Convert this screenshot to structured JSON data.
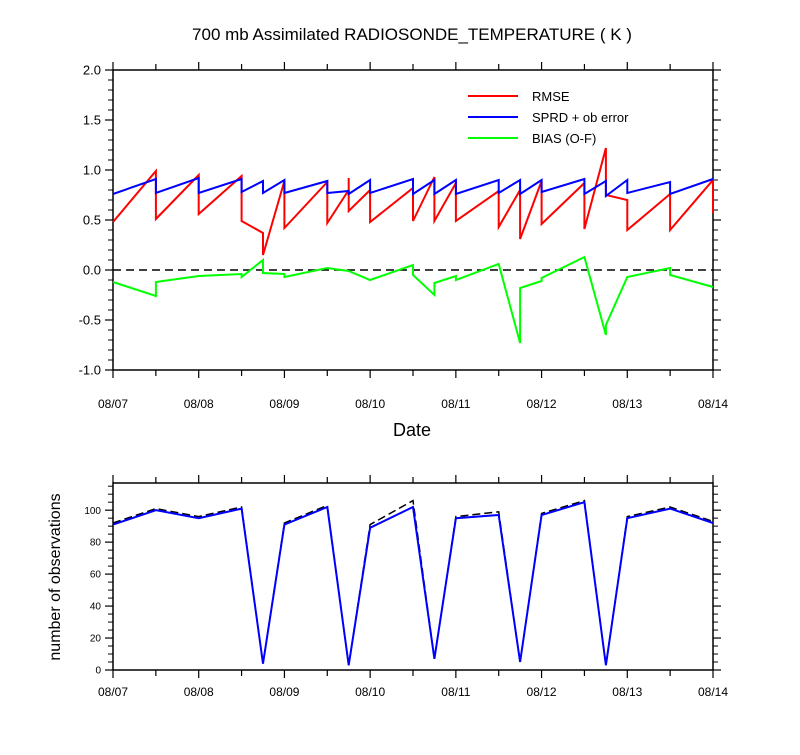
{
  "title": "700 mb Assimilated RADIOSONDE_TEMPERATURE ( K )",
  "colors": {
    "rmse": "#ff0000",
    "sprd": "#0000ff",
    "bias": "#00ff00",
    "zero_line": "#000000",
    "obs_total": "#000000",
    "obs_used": "#0000ff"
  },
  "chart_data": [
    {
      "type": "line",
      "xlabel": "Date",
      "ylabel": "",
      "xlim": [
        "2008-08-07 00:00",
        "2008-08-14 00:00"
      ],
      "ylim": [
        -1.0,
        2.0
      ],
      "x_tick_labels": [
        "08/07",
        "08/08",
        "08/09",
        "08/10",
        "08/11",
        "08/12",
        "08/13",
        "08/14"
      ],
      "y_tick_labels": [
        "2.0",
        "1.5",
        "1.0",
        "0.5",
        "0.0",
        "-0.5",
        "-1.0"
      ],
      "y_tick_values": [
        2.0,
        1.5,
        1.0,
        0.5,
        0.0,
        -0.5,
        -1.0
      ],
      "reference_line": {
        "y": 0.0,
        "style": "dashed"
      },
      "legend_position": "top-right",
      "series": [
        {
          "name": "RMSE",
          "color": "#ff0000",
          "points": [
            [
              "2008-08-07 00:00",
              0.48
            ],
            [
              "2008-08-07 12:00",
              0.99
            ],
            [
              "2008-08-07 12:00",
              0.51
            ],
            [
              "2008-08-08 00:00",
              0.95
            ],
            [
              "2008-08-08 00:00",
              0.56
            ],
            [
              "2008-08-08 12:00",
              0.94
            ],
            [
              "2008-08-08 12:00",
              0.49
            ],
            [
              "2008-08-08 18:00",
              0.37
            ],
            [
              "2008-08-08 18:00",
              0.15
            ],
            [
              "2008-08-09 00:00",
              0.89
            ],
            [
              "2008-08-09 00:00",
              0.42
            ],
            [
              "2008-08-09 12:00",
              0.88
            ],
            [
              "2008-08-09 12:00",
              0.47
            ],
            [
              "2008-08-09 18:00",
              0.8
            ],
            [
              "2008-08-09 18:00",
              0.92
            ],
            [
              "2008-08-09 18:00",
              0.59
            ],
            [
              "2008-08-10 00:00",
              0.8
            ],
            [
              "2008-08-10 00:00",
              0.48
            ],
            [
              "2008-08-10 12:00",
              0.82
            ],
            [
              "2008-08-10 12:00",
              0.49
            ],
            [
              "2008-08-10 18:00",
              0.93
            ],
            [
              "2008-08-10 18:00",
              0.49
            ],
            [
              "2008-08-11 00:00",
              0.87
            ],
            [
              "2008-08-11 00:00",
              0.49
            ],
            [
              "2008-08-11 12:00",
              0.79
            ],
            [
              "2008-08-11 12:00",
              0.43
            ],
            [
              "2008-08-11 18:00",
              0.8
            ],
            [
              "2008-08-11 18:00",
              0.31
            ],
            [
              "2008-08-12 00:00",
              0.89
            ],
            [
              "2008-08-12 00:00",
              0.46
            ],
            [
              "2008-08-12 12:00",
              0.87
            ],
            [
              "2008-08-12 12:00",
              0.41
            ],
            [
              "2008-08-12 18:00",
              1.22
            ],
            [
              "2008-08-12 18:00",
              0.75
            ],
            [
              "2008-08-13 00:00",
              0.7
            ],
            [
              "2008-08-13 00:00",
              0.4
            ],
            [
              "2008-08-13 12:00",
              0.76
            ],
            [
              "2008-08-13 12:00",
              0.4
            ],
            [
              "2008-08-14 00:00",
              0.9
            ],
            [
              "2008-08-14 00:00",
              0.57
            ]
          ]
        },
        {
          "name": "SPRD + ob error",
          "color": "#0000ff",
          "points": [
            [
              "2008-08-07 00:00",
              0.76
            ],
            [
              "2008-08-07 12:00",
              0.91
            ],
            [
              "2008-08-07 12:00",
              0.77
            ],
            [
              "2008-08-08 00:00",
              0.92
            ],
            [
              "2008-08-08 00:00",
              0.77
            ],
            [
              "2008-08-08 12:00",
              0.91
            ],
            [
              "2008-08-08 12:00",
              0.78
            ],
            [
              "2008-08-08 18:00",
              0.89
            ],
            [
              "2008-08-08 18:00",
              0.77
            ],
            [
              "2008-08-09 00:00",
              0.9
            ],
            [
              "2008-08-09 00:00",
              0.77
            ],
            [
              "2008-08-09 12:00",
              0.89
            ],
            [
              "2008-08-09 12:00",
              0.77
            ],
            [
              "2008-08-09 18:00",
              0.79
            ],
            [
              "2008-08-09 18:00",
              0.76
            ],
            [
              "2008-08-09 18:00",
              0.76
            ],
            [
              "2008-08-10 00:00",
              0.9
            ],
            [
              "2008-08-10 00:00",
              0.77
            ],
            [
              "2008-08-10 12:00",
              0.91
            ],
            [
              "2008-08-10 12:00",
              0.76
            ],
            [
              "2008-08-10 18:00",
              0.9
            ],
            [
              "2008-08-10 18:00",
              0.76
            ],
            [
              "2008-08-11 00:00",
              0.9
            ],
            [
              "2008-08-11 00:00",
              0.76
            ],
            [
              "2008-08-11 12:00",
              0.9
            ],
            [
              "2008-08-11 12:00",
              0.77
            ],
            [
              "2008-08-11 18:00",
              0.9
            ],
            [
              "2008-08-11 18:00",
              0.76
            ],
            [
              "2008-08-12 00:00",
              0.9
            ],
            [
              "2008-08-12 00:00",
              0.78
            ],
            [
              "2008-08-12 12:00",
              0.91
            ],
            [
              "2008-08-12 12:00",
              0.76
            ],
            [
              "2008-08-12 18:00",
              0.89
            ],
            [
              "2008-08-12 18:00",
              0.74
            ],
            [
              "2008-08-13 00:00",
              0.9
            ],
            [
              "2008-08-13 00:00",
              0.77
            ],
            [
              "2008-08-13 12:00",
              0.88
            ],
            [
              "2008-08-13 12:00",
              0.76
            ],
            [
              "2008-08-14 00:00",
              0.91
            ]
          ]
        },
        {
          "name": "BIAS (O-F)",
          "color": "#00ff00",
          "points": [
            [
              "2008-08-07 00:00",
              -0.12
            ],
            [
              "2008-08-07 12:00",
              -0.26
            ],
            [
              "2008-08-07 12:00",
              -0.12
            ],
            [
              "2008-08-08 00:00",
              -0.06
            ],
            [
              "2008-08-08 12:00",
              -0.04
            ],
            [
              "2008-08-08 12:00",
              -0.07
            ],
            [
              "2008-08-08 18:00",
              0.1
            ],
            [
              "2008-08-08 18:00",
              -0.03
            ],
            [
              "2008-08-09 00:00",
              -0.04
            ],
            [
              "2008-08-09 00:00",
              -0.07
            ],
            [
              "2008-08-09 12:00",
              0.02
            ],
            [
              "2008-08-09 18:00",
              -0.01
            ],
            [
              "2008-08-10 00:00",
              -0.1
            ],
            [
              "2008-08-10 12:00",
              0.05
            ],
            [
              "2008-08-10 12:00",
              -0.05
            ],
            [
              "2008-08-10 18:00",
              -0.25
            ],
            [
              "2008-08-10 18:00",
              -0.13
            ],
            [
              "2008-08-11 00:00",
              -0.06
            ],
            [
              "2008-08-11 00:00",
              -0.1
            ],
            [
              "2008-08-11 12:00",
              0.06
            ],
            [
              "2008-08-11 18:00",
              -0.73
            ],
            [
              "2008-08-11 18:00",
              -0.18
            ],
            [
              "2008-08-12 00:00",
              -0.11
            ],
            [
              "2008-08-12 00:00",
              -0.08
            ],
            [
              "2008-08-12 12:00",
              0.13
            ],
            [
              "2008-08-12 18:00",
              -0.65
            ],
            [
              "2008-08-12 18:00",
              -0.55
            ],
            [
              "2008-08-13 00:00",
              -0.07
            ],
            [
              "2008-08-13 12:00",
              0.02
            ],
            [
              "2008-08-13 12:00",
              -0.05
            ],
            [
              "2008-08-14 00:00",
              -0.17
            ]
          ]
        }
      ]
    },
    {
      "type": "line",
      "xlabel": "",
      "ylabel": "number of observations",
      "xlim": [
        "2008-08-07 00:00",
        "2008-08-14 00:00"
      ],
      "ylim": [
        0,
        117
      ],
      "x_tick_labels": [
        "08/07",
        "08/08",
        "08/09",
        "08/10",
        "08/11",
        "08/12",
        "08/13",
        "08/14"
      ],
      "y_tick_labels": [
        "100",
        "80",
        "60",
        "40",
        "20",
        "0"
      ],
      "y_tick_values": [
        100,
        80,
        60,
        40,
        20,
        0
      ],
      "series": [
        {
          "style": "dashed",
          "color": "#000000",
          "points": [
            [
              "2008-08-07 00:00",
              92
            ],
            [
              "2008-08-07 12:00",
              101
            ],
            [
              "2008-08-08 00:00",
              96
            ],
            [
              "2008-08-08 12:00",
              102
            ],
            [
              "2008-08-08 18:00",
              4
            ],
            [
              "2008-08-09 00:00",
              92
            ],
            [
              "2008-08-09 12:00",
              103
            ],
            [
              "2008-08-09 18:00",
              3
            ],
            [
              "2008-08-10 00:00",
              91
            ],
            [
              "2008-08-10 12:00",
              106
            ],
            [
              "2008-08-10 18:00",
              7
            ],
            [
              "2008-08-11 00:00",
              96
            ],
            [
              "2008-08-11 12:00",
              99
            ],
            [
              "2008-08-11 18:00",
              5
            ],
            [
              "2008-08-12 00:00",
              98
            ],
            [
              "2008-08-12 12:00",
              106
            ],
            [
              "2008-08-12 18:00",
              3
            ],
            [
              "2008-08-13 00:00",
              96
            ],
            [
              "2008-08-13 12:00",
              102
            ],
            [
              "2008-08-14 00:00",
              93
            ]
          ]
        },
        {
          "style": "solid",
          "color": "#0000ff",
          "points": [
            [
              "2008-08-07 00:00",
              91
            ],
            [
              "2008-08-07 12:00",
              100
            ],
            [
              "2008-08-08 00:00",
              95
            ],
            [
              "2008-08-08 12:00",
              101
            ],
            [
              "2008-08-08 18:00",
              4
            ],
            [
              "2008-08-09 00:00",
              91
            ],
            [
              "2008-08-09 12:00",
              102
            ],
            [
              "2008-08-09 18:00",
              3
            ],
            [
              "2008-08-10 00:00",
              89
            ],
            [
              "2008-08-10 12:00",
              102
            ],
            [
              "2008-08-10 18:00",
              7
            ],
            [
              "2008-08-11 00:00",
              95
            ],
            [
              "2008-08-11 12:00",
              97
            ],
            [
              "2008-08-11 18:00",
              5
            ],
            [
              "2008-08-12 00:00",
              97
            ],
            [
              "2008-08-12 12:00",
              105
            ],
            [
              "2008-08-12 18:00",
              3
            ],
            [
              "2008-08-13 00:00",
              95
            ],
            [
              "2008-08-13 12:00",
              101
            ],
            [
              "2008-08-14 00:00",
              92
            ]
          ]
        }
      ]
    }
  ]
}
